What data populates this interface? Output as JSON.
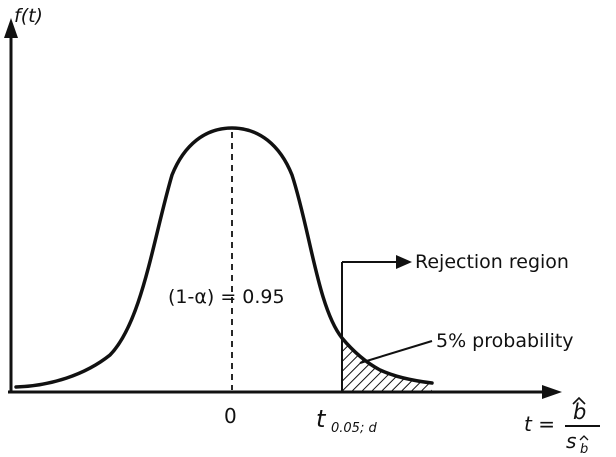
{
  "axes": {
    "y_label": "f(t)",
    "x_origin_label": "0",
    "critical_value_label_main": "t",
    "critical_value_label_sub": "0.05; d",
    "x_label_prefix": "t =",
    "x_label_numerator": "b",
    "x_label_denominator_main": "s",
    "x_label_denominator_sub": "b"
  },
  "annotations": {
    "confidence_label": "(1-α) = 0.95",
    "rejection_label": "Rejection region",
    "probability_label": "5% probability"
  },
  "colors": {
    "ink": "#111111",
    "background": "#ffffff"
  }
}
